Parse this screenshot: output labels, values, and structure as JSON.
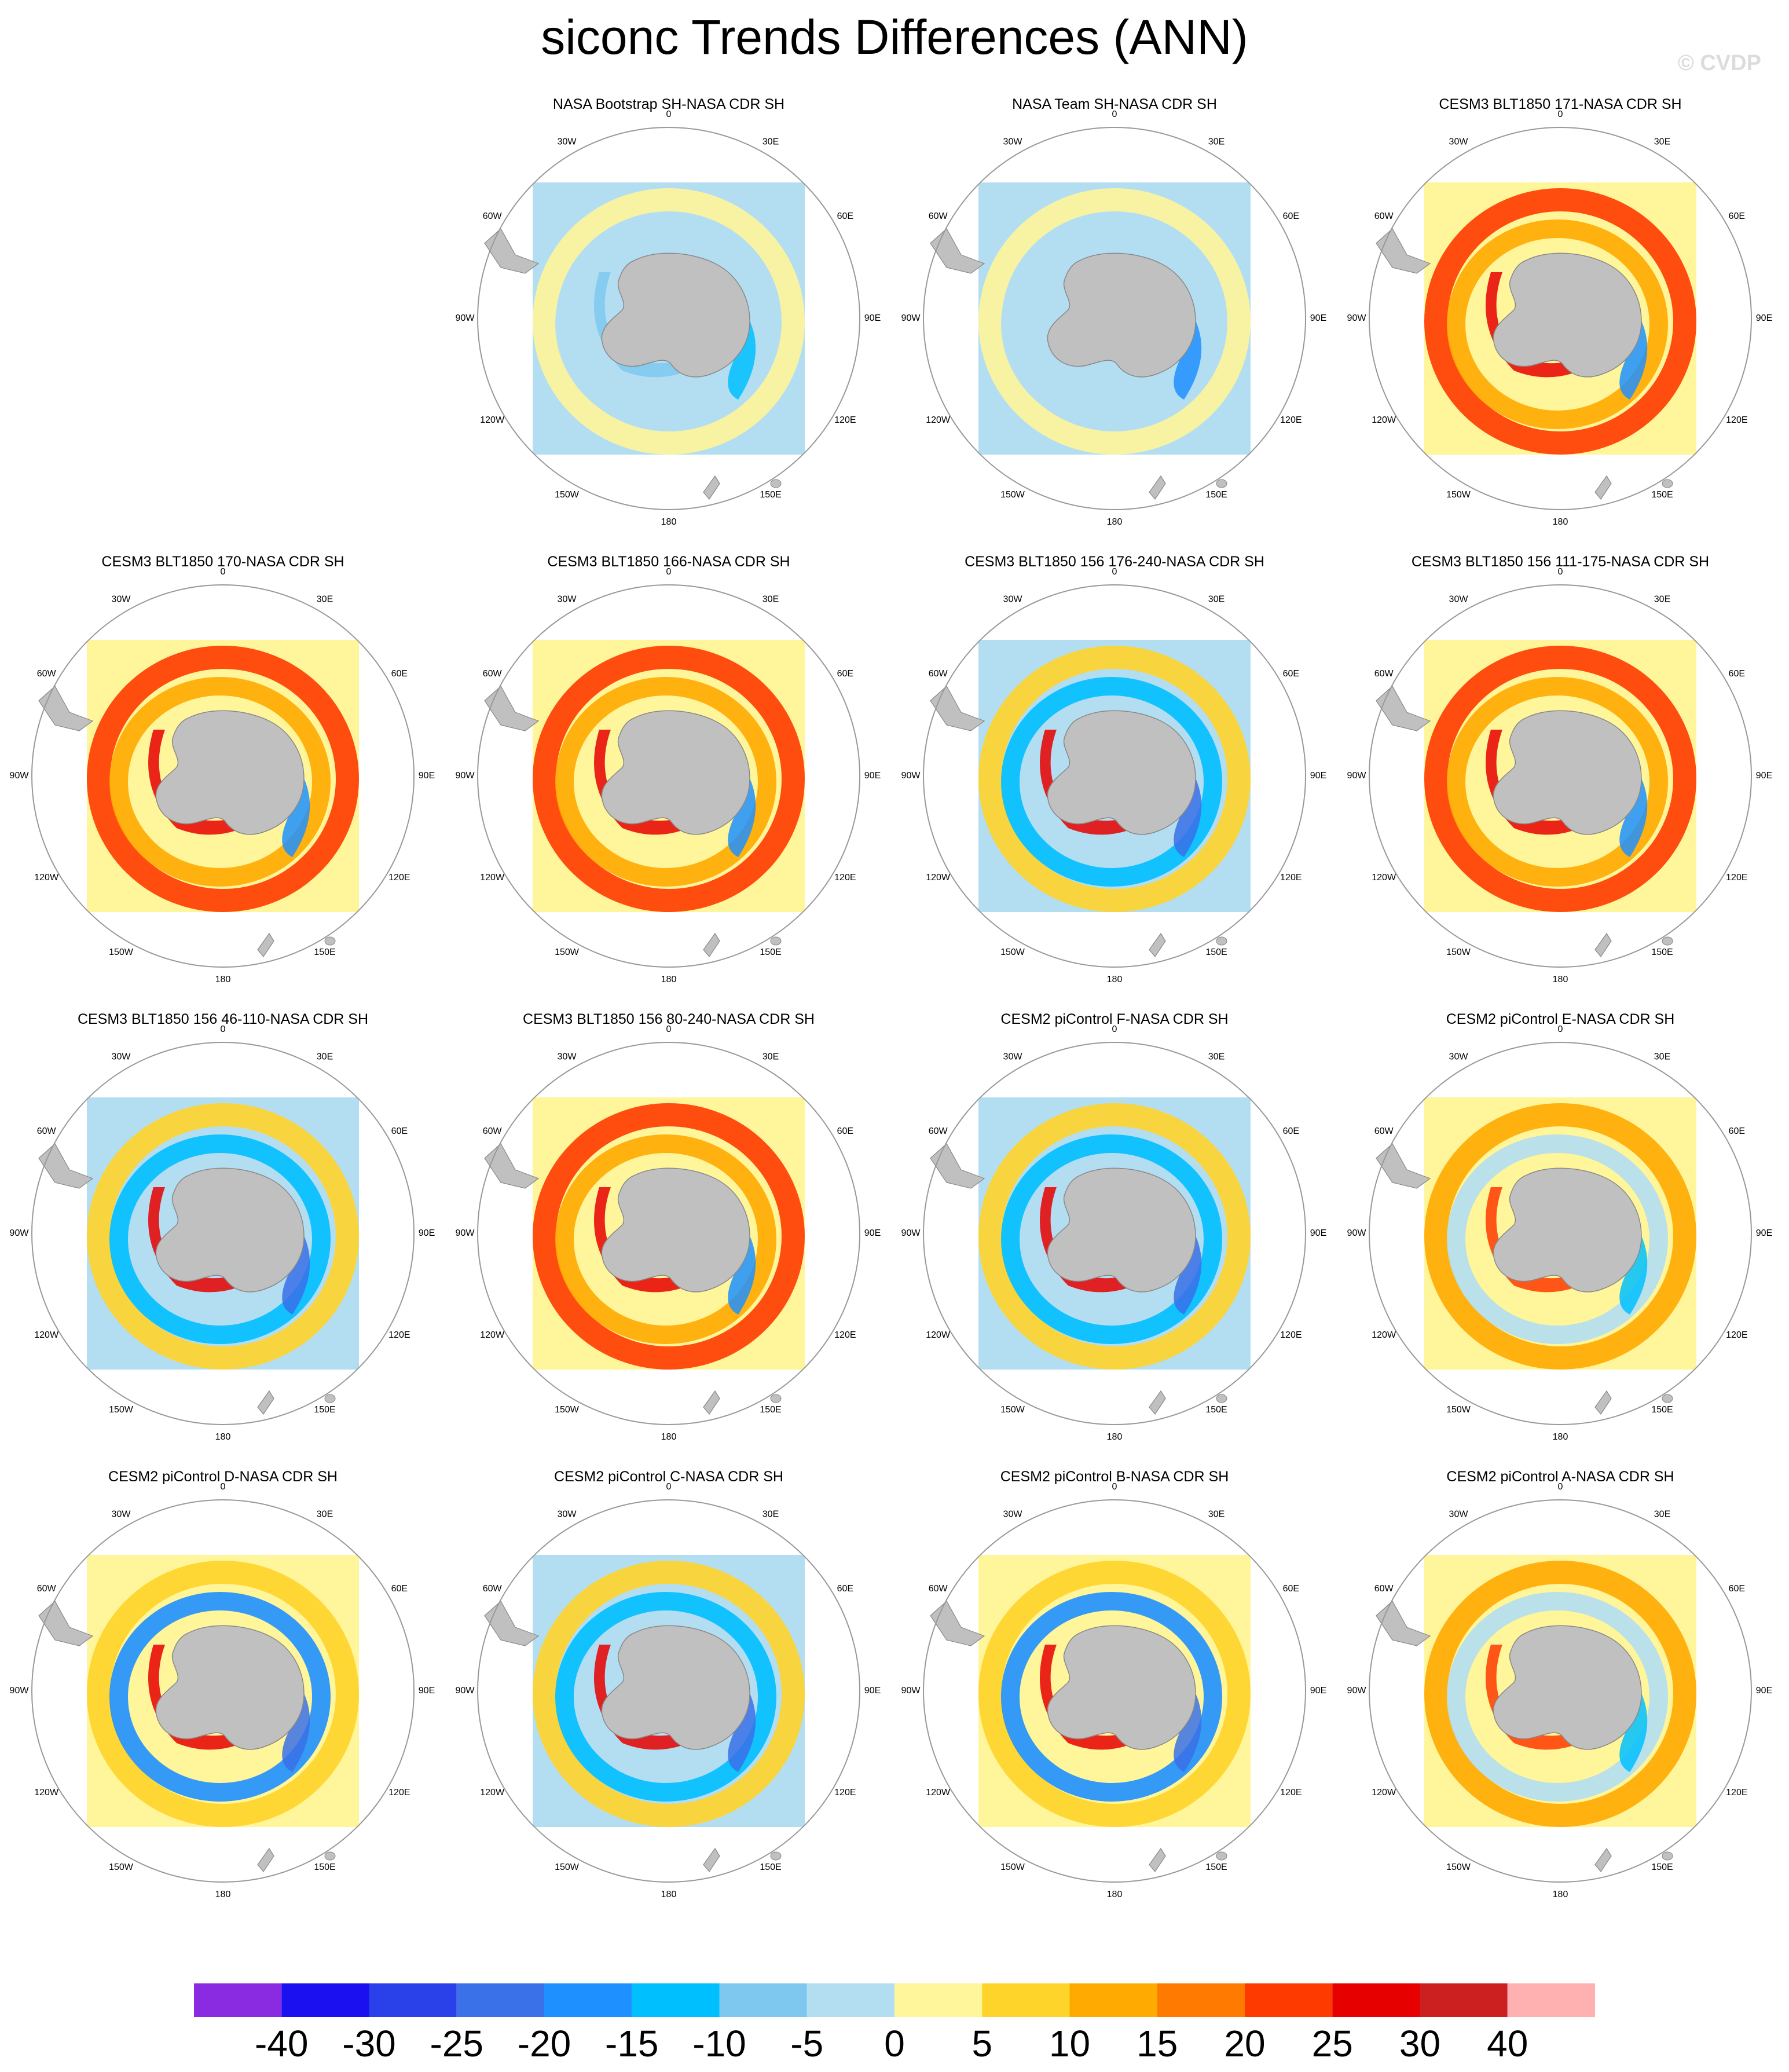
{
  "figure": {
    "title": "siconc Trends Differences (ANN)",
    "watermark": "© CVDP"
  },
  "longitude_labels": [
    "0",
    "30E",
    "60E",
    "90E",
    "120E",
    "150E",
    "180",
    "150W",
    "120W",
    "90W",
    "60W",
    "30W"
  ],
  "panels": [
    {
      "title": "NASA Bootstrap SH-NASA CDR SH",
      "pattern": "obs"
    },
    {
      "title": "NASA Team SH-NASA CDR SH",
      "pattern": "obs-team"
    },
    {
      "title": "CESM3 BLT1850 171-NASA CDR SH",
      "pattern": "strong-positive"
    },
    {
      "title": "CESM3 BLT1850 170-NASA CDR SH",
      "pattern": "strong-positive"
    },
    {
      "title": "CESM3 BLT1850 166-NASA CDR SH",
      "pattern": "strong-positive"
    },
    {
      "title": "CESM3 BLT1850 156 176-240-NASA CDR SH",
      "pattern": "mixed"
    },
    {
      "title": "CESM3 BLT1850 156 111-175-NASA CDR SH",
      "pattern": "strong-positive"
    },
    {
      "title": "CESM3 BLT1850 156 46-110-NASA CDR SH",
      "pattern": "mixed"
    },
    {
      "title": "CESM3 BLT1850 156 80-240-NASA CDR SH",
      "pattern": "strong-positive"
    },
    {
      "title": "CESM2 piControl F-NASA CDR SH",
      "pattern": "mixed"
    },
    {
      "title": "CESM2 piControl E-NASA CDR SH",
      "pattern": "moderate-positive"
    },
    {
      "title": "CESM2 piControl D-NASA CDR SH",
      "pattern": "negative"
    },
    {
      "title": "CESM2 piControl C-NASA CDR SH",
      "pattern": "mixed"
    },
    {
      "title": "CESM2 piControl B-NASA CDR SH",
      "pattern": "negative"
    },
    {
      "title": "CESM2 piControl A-NASA CDR SH",
      "pattern": "moderate-positive"
    }
  ],
  "colorbar": {
    "colors": [
      "#8a2be2",
      "#1a10f0",
      "#2a40e8",
      "#3a70e8",
      "#1e90ff",
      "#00bfff",
      "#7ec8f0",
      "#b3def2",
      "#fff59a",
      "#ffd42a",
      "#ffaa00",
      "#ff7a00",
      "#ff3a00",
      "#e60000",
      "#cc2020",
      "#ffb0b0"
    ],
    "labels": [
      "-40",
      "-30",
      "-25",
      "-20",
      "-15",
      "-10",
      "-5",
      "0",
      "5",
      "10",
      "15",
      "20",
      "25",
      "30",
      "40"
    ]
  },
  "colors": {
    "land": "#c0c0c0",
    "ocean_zero": "#fff59a",
    "circle": "#999999"
  }
}
